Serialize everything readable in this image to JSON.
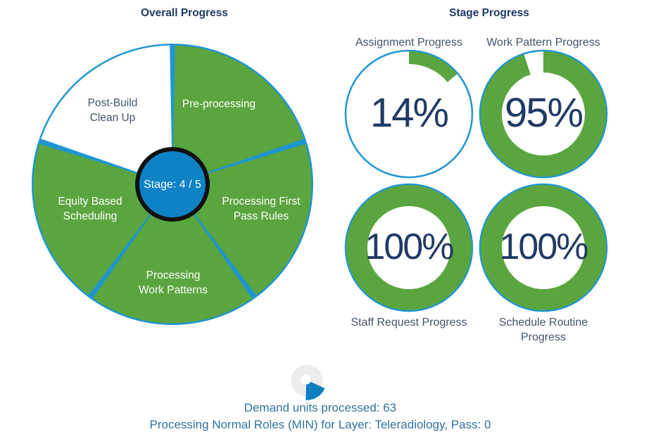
{
  "left_panel": {
    "title": "Overall Progress",
    "stage_label": "Stage: 4 / 5",
    "slices": [
      {
        "label": "Pre-processing",
        "complete": true
      },
      {
        "label": "Processing First\nPass Rules",
        "complete": true
      },
      {
        "label": "Processing\nWork Patterns",
        "complete": true
      },
      {
        "label": "Equity Based\nScheduling",
        "complete": true
      },
      {
        "label": "Post-Build\nClean Up",
        "complete": false
      }
    ]
  },
  "right_panel": {
    "title": "Stage Progress",
    "gauges": [
      {
        "label": "Assignment Progress",
        "value": 14,
        "display": "14%",
        "ring": "thin",
        "label_position": "above"
      },
      {
        "label": "Work Pattern Progress",
        "value": 95,
        "display": "95%",
        "ring": "thick",
        "label_position": "above"
      },
      {
        "label": "Staff Request Progress",
        "value": 100,
        "display": "100%",
        "ring": "thick",
        "label_position": "below"
      },
      {
        "label": "Schedule Routine\nProgress",
        "value": 100,
        "display": "100%",
        "ring": "thick",
        "label_position": "below"
      }
    ]
  },
  "status": {
    "line1": "Demand units processed: 63",
    "line2": "Processing Normal Roles (MIN) for Layer: Teleradiology, Pass: 0",
    "spinner_icon": "pie-spinner"
  },
  "colors": {
    "green": "#5AA53F",
    "blue_outline": "#1E96D3",
    "pie_base": "#1E96D3",
    "center_blue": "#0D83C5",
    "center_ring": "#101010",
    "navy": "#1F3864",
    "label": "#44546A",
    "percent": "#213A66",
    "status_text": "#33719F",
    "spinner_gray": "#EDEDED",
    "spinner_blue": "#0E7FC1",
    "white": "#FFFFFF"
  },
  "chart_data": [
    {
      "type": "pie",
      "title": "Overall Progress",
      "categories": [
        "Pre-processing",
        "Processing First Pass Rules",
        "Processing Work Patterns",
        "Equity Based Scheduling",
        "Post-Build Clean Up"
      ],
      "values": [
        20,
        20,
        20,
        20,
        20
      ],
      "completed": [
        true,
        true,
        true,
        true,
        false
      ],
      "center_label": "Stage: 4 / 5",
      "start_angle_deg": 0,
      "direction": "clockwise",
      "slice_gap_deg": 2.2
    },
    {
      "type": "donut-gauges",
      "title": "Stage Progress",
      "series": [
        {
          "name": "Assignment Progress",
          "value": 14
        },
        {
          "name": "Work Pattern Progress",
          "value": 95
        },
        {
          "name": "Staff Request Progress",
          "value": 100
        },
        {
          "name": "Schedule Routine Progress",
          "value": 100
        }
      ],
      "value_range": [
        0,
        100
      ],
      "arc_start": "top",
      "direction": "clockwise"
    }
  ]
}
